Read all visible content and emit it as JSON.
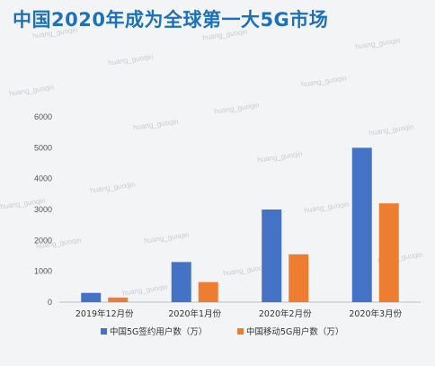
{
  "title": "中国2020年成为全球第一大5G市场",
  "watermark": "huang_guoqin",
  "chart_data": {
    "type": "bar",
    "categories": [
      "2019年12月份",
      "2020年1月份",
      "2020年2月份",
      "2020年3月份"
    ],
    "series": [
      {
        "name": "中国5G签约用户数（万）",
        "color": "#4472c4",
        "values": [
          300,
          1300,
          3000,
          5000
        ]
      },
      {
        "name": "中国移动5G用户数（万）",
        "color": "#ed7d31",
        "values": [
          150,
          650,
          1550,
          3200
        ]
      }
    ],
    "ylim": [
      0,
      6000
    ],
    "yticks": [
      0,
      1000,
      2000,
      3000,
      4000,
      5000,
      6000
    ],
    "grid": false,
    "legend": "bottom"
  }
}
